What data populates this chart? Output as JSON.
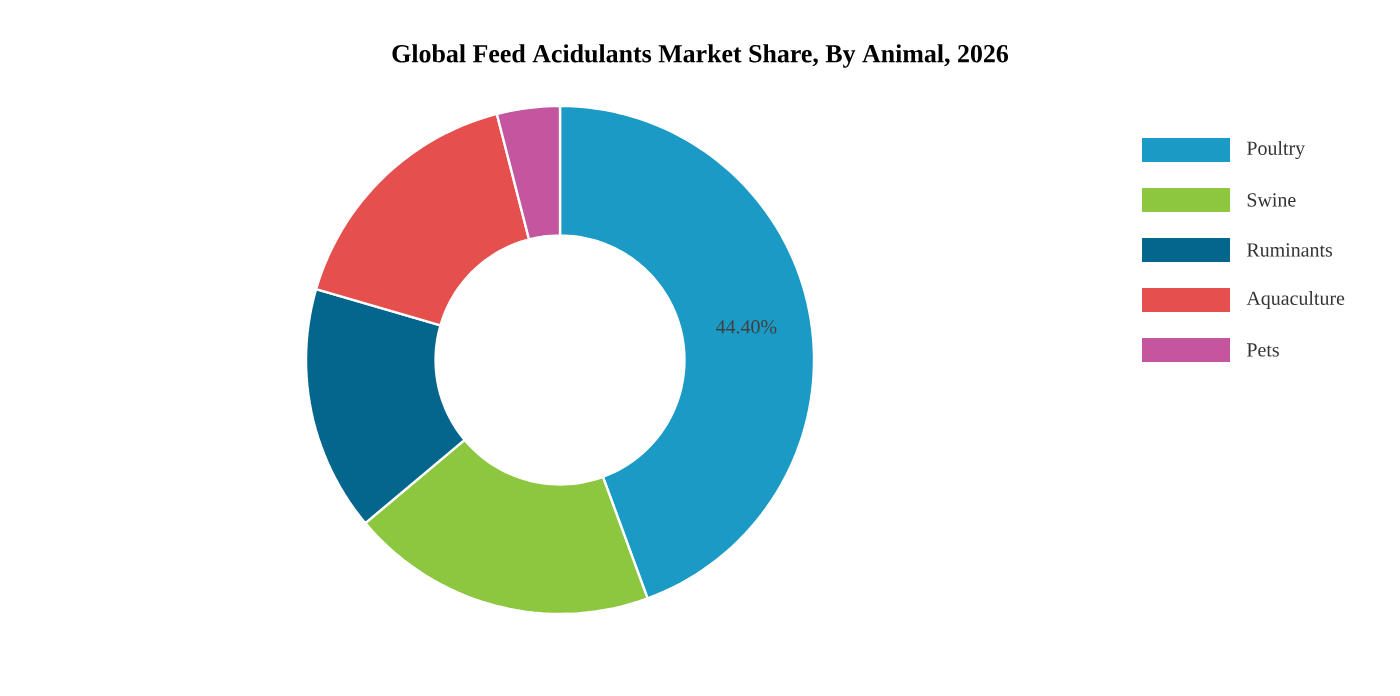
{
  "chart_data": {
    "type": "donut",
    "title": "Global Feed Acidulants Market Share, By Animal, 2026",
    "categories": [
      "Poultry",
      "Swine",
      "Ruminants",
      "Aquaculture",
      "Pets"
    ],
    "values": [
      44.4,
      19.5,
      15.6,
      16.5,
      4.0
    ],
    "colors": [
      "#1b9ac6",
      "#8dc63f",
      "#05668d",
      "#e5504e",
      "#c3569f"
    ],
    "value_labels": [
      "44.40%",
      null,
      null,
      null,
      null
    ],
    "legend": "right"
  }
}
